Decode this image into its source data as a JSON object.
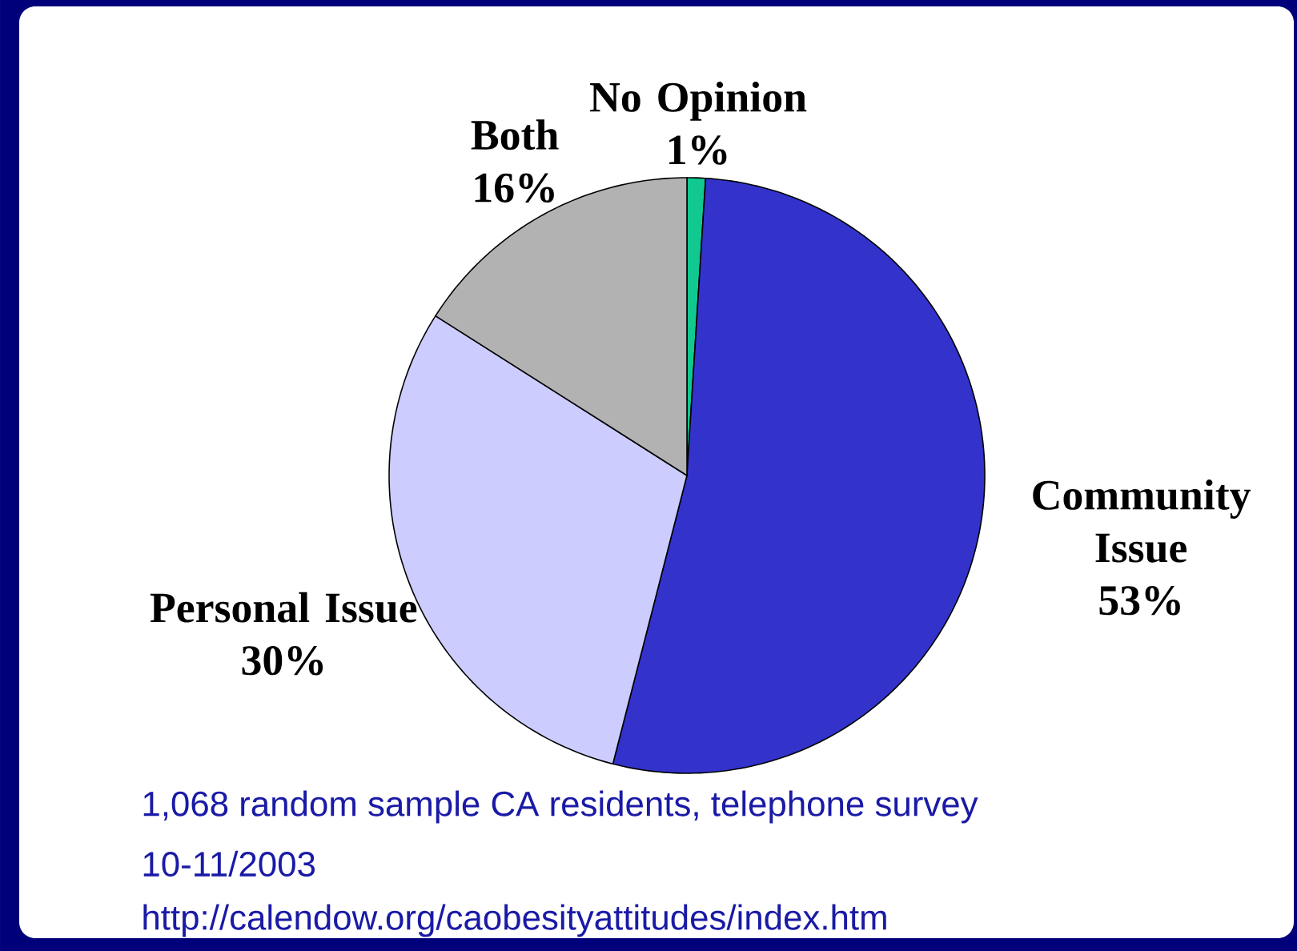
{
  "chart_data": {
    "type": "pie",
    "categories": [
      "No Opinion",
      "Community Issue",
      "Personal Issue",
      "Both"
    ],
    "values": [
      1,
      53,
      30,
      16
    ],
    "value_labels": [
      "1%",
      "53%",
      "30%",
      "16%"
    ],
    "colors": [
      "#10c890",
      "#3333cc",
      "#ccccff",
      "#b2b2b2"
    ],
    "annotations": [
      "1,068 random sample CA residents, telephone survey",
      "10-11/2003",
      "http://calendow.org/caobesityattitudes/index.htm"
    ]
  }
}
